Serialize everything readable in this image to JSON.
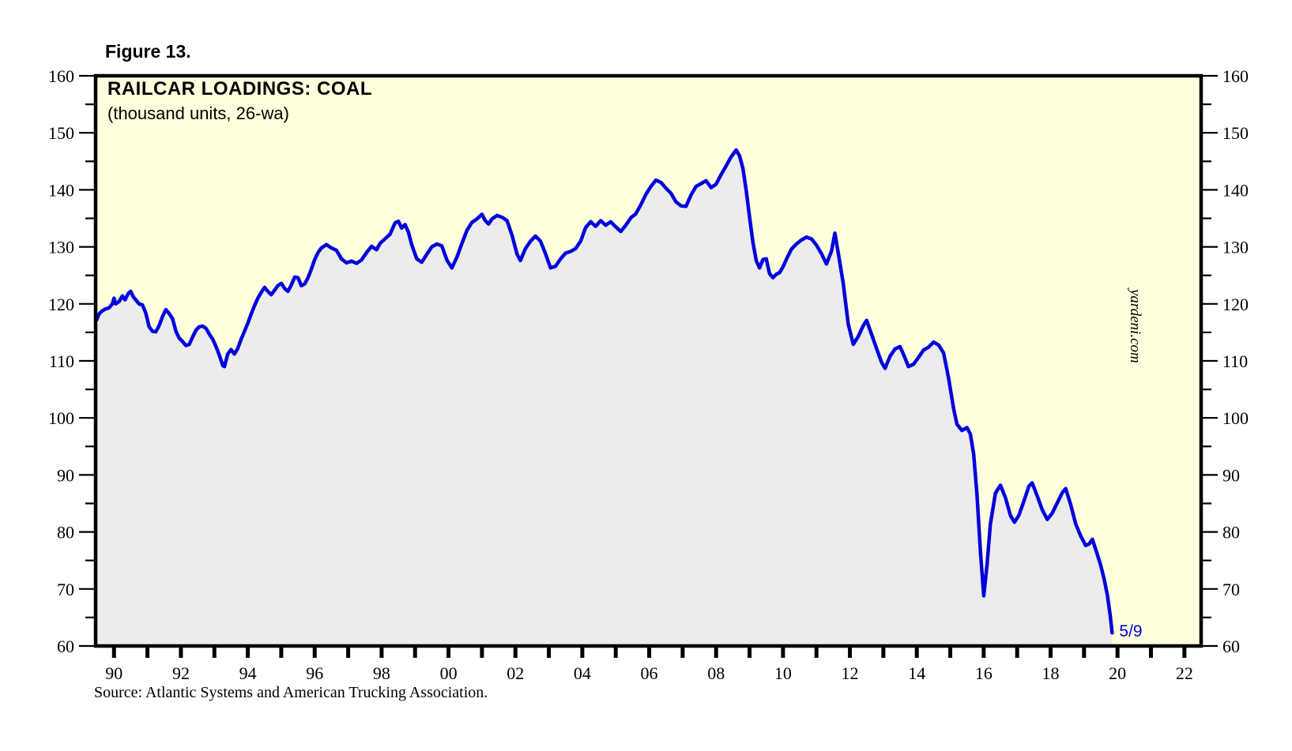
{
  "figure": {
    "label": "Figure 13."
  },
  "chart": {
    "title": "RAILCAR LOADINGS: COAL",
    "subtitle": "(thousand units, 26-wa)",
    "watermark": "yardeni.com",
    "end_label": "5/9",
    "source": "Source: Atlantic Systems and American Trucking Association.",
    "colors": {
      "line": "#0000dd",
      "area_fill": "#ececec",
      "plot_background": "#ffffdd",
      "border": "#000000",
      "annotation": "#0000dd"
    }
  },
  "chart_data": {
    "type": "line",
    "title": "RAILCAR LOADINGS: COAL",
    "subtitle": "(thousand units, 26-wa)",
    "xlabel": "",
    "ylabel": "thousand units",
    "xlim": [
      1989.45,
      2022.5
    ],
    "ylim": [
      60,
      160
    ],
    "grid": false,
    "legend_position": "none",
    "y_tick_major": 10,
    "y_tick_minor": 5,
    "x_axis": {
      "tick_years_labeled": [
        1990,
        1992,
        1994,
        1996,
        1998,
        2000,
        2002,
        2004,
        2006,
        2008,
        2010,
        2012,
        2014,
        2016,
        2018,
        2020,
        2022
      ],
      "labels": [
        "90",
        "92",
        "94",
        "96",
        "98",
        "00",
        "02",
        "04",
        "06",
        "08",
        "10",
        "12",
        "14",
        "16",
        "18",
        "20",
        "22"
      ],
      "minor_tick_every_year": true
    },
    "y_axis": {
      "tick_values_labeled": [
        60,
        70,
        80,
        90,
        100,
        110,
        120,
        130,
        140,
        150,
        160
      ],
      "labels_both_sides": true
    },
    "annotation": {
      "x": 2019.84,
      "y": 62.3,
      "label": "5/9"
    },
    "series": [
      {
        "name": "Railcar loadings: coal (thousand units, 26-week average)",
        "x": [
          1989.48,
          1989.56,
          1989.65,
          1989.75,
          1989.85,
          1989.95,
          1990.0,
          1990.05,
          1990.15,
          1990.25,
          1990.33,
          1990.42,
          1990.5,
          1990.58,
          1990.65,
          1990.75,
          1990.85,
          1990.95,
          1991.05,
          1991.15,
          1991.25,
          1991.35,
          1991.45,
          1991.55,
          1991.65,
          1991.75,
          1991.85,
          1991.95,
          1992.05,
          1992.15,
          1992.25,
          1992.35,
          1992.45,
          1992.55,
          1992.65,
          1992.75,
          1992.85,
          1992.95,
          1993.05,
          1993.15,
          1993.25,
          1993.3,
          1993.4,
          1993.5,
          1993.6,
          1993.7,
          1993.8,
          1993.9,
          1994.0,
          1994.1,
          1994.2,
          1994.3,
          1994.4,
          1994.5,
          1994.6,
          1994.7,
          1994.8,
          1994.9,
          1995.0,
          1995.1,
          1995.2,
          1995.3,
          1995.4,
          1995.5,
          1995.6,
          1995.7,
          1995.8,
          1995.9,
          1996.0,
          1996.1,
          1996.2,
          1996.35,
          1996.5,
          1996.65,
          1996.8,
          1996.95,
          1997.1,
          1997.25,
          1997.4,
          1997.55,
          1997.7,
          1997.85,
          1997.95,
          1998.1,
          1998.25,
          1998.4,
          1998.5,
          1998.6,
          1998.7,
          1998.8,
          1998.9,
          1999.05,
          1999.2,
          1999.35,
          1999.5,
          1999.65,
          1999.8,
          1999.95,
          2000.1,
          2000.25,
          2000.4,
          2000.55,
          2000.7,
          2000.85,
          2001.0,
          2001.1,
          2001.2,
          2001.3,
          2001.45,
          2001.6,
          2001.75,
          2001.9,
          2002.05,
          2002.15,
          2002.3,
          2002.45,
          2002.6,
          2002.75,
          2002.9,
          2003.05,
          2003.2,
          2003.35,
          2003.5,
          2003.65,
          2003.8,
          2003.95,
          2004.1,
          2004.25,
          2004.4,
          2004.55,
          2004.7,
          2004.85,
          2005.0,
          2005.15,
          2005.3,
          2005.45,
          2005.6,
          2005.75,
          2005.9,
          2006.05,
          2006.2,
          2006.35,
          2006.5,
          2006.65,
          2006.8,
          2006.95,
          2007.1,
          2007.25,
          2007.4,
          2007.55,
          2007.7,
          2007.85,
          2008.0,
          2008.15,
          2008.3,
          2008.45,
          2008.6,
          2008.7,
          2008.8,
          2008.9,
          2009.0,
          2009.1,
          2009.2,
          2009.3,
          2009.4,
          2009.5,
          2009.6,
          2009.7,
          2009.8,
          2009.9,
          2010.0,
          2010.1,
          2010.25,
          2010.4,
          2010.55,
          2010.7,
          2010.85,
          2011.0,
          2011.15,
          2011.3,
          2011.45,
          2011.55,
          2011.65,
          2011.8,
          2011.95,
          2012.1,
          2012.25,
          2012.4,
          2012.5,
          2012.65,
          2012.8,
          2012.95,
          2013.05,
          2013.2,
          2013.35,
          2013.5,
          2013.62,
          2013.75,
          2013.9,
          2014.05,
          2014.2,
          2014.35,
          2014.5,
          2014.65,
          2014.8,
          2014.95,
          2015.1,
          2015.2,
          2015.35,
          2015.5,
          2015.6,
          2015.7,
          2015.8,
          2015.9,
          2016.0,
          2016.1,
          2016.2,
          2016.35,
          2016.5,
          2016.65,
          2016.8,
          2016.92,
          2017.05,
          2017.2,
          2017.35,
          2017.45,
          2017.6,
          2017.75,
          2017.9,
          2018.05,
          2018.2,
          2018.35,
          2018.45,
          2018.6,
          2018.75,
          2018.9,
          2019.05,
          2019.15,
          2019.25,
          2019.4,
          2019.5,
          2019.6,
          2019.7,
          2019.78,
          2019.84
        ],
        "y": [
          117.2,
          118.3,
          118.8,
          119.1,
          119.3,
          120.0,
          121.0,
          120.0,
          120.4,
          121.4,
          120.7,
          121.8,
          122.2,
          121.2,
          120.7,
          120.0,
          119.8,
          118.4,
          116.0,
          115.2,
          115.1,
          116.2,
          117.8,
          119.0,
          118.3,
          117.4,
          115.2,
          114.0,
          113.4,
          112.7,
          112.9,
          114.2,
          115.4,
          116.0,
          116.1,
          115.7,
          114.7,
          113.8,
          112.5,
          111.0,
          109.2,
          109.0,
          111.2,
          112.0,
          111.2,
          112.2,
          113.8,
          115.2,
          116.6,
          118.2,
          119.7,
          121.0,
          122.0,
          122.9,
          122.2,
          121.6,
          122.4,
          123.2,
          123.6,
          122.7,
          122.2,
          123.3,
          124.7,
          124.6,
          123.2,
          123.5,
          124.6,
          126.1,
          127.8,
          129.0,
          129.8,
          130.4,
          129.8,
          129.4,
          127.9,
          127.2,
          127.5,
          127.1,
          127.7,
          129.0,
          130.1,
          129.5,
          130.6,
          131.4,
          132.2,
          134.2,
          134.5,
          133.3,
          133.9,
          132.6,
          130.4,
          127.9,
          127.3,
          128.7,
          130.0,
          130.5,
          130.2,
          127.7,
          126.3,
          128.2,
          130.6,
          132.9,
          134.3,
          134.9,
          135.7,
          134.6,
          134.0,
          134.9,
          135.5,
          135.2,
          134.6,
          132.0,
          128.7,
          127.6,
          129.7,
          131.0,
          131.9,
          131.0,
          128.8,
          126.3,
          126.6,
          127.9,
          128.9,
          129.2,
          129.7,
          131.0,
          133.4,
          134.4,
          133.6,
          134.6,
          133.8,
          134.4,
          133.5,
          132.7,
          133.8,
          135.1,
          135.8,
          137.4,
          139.2,
          140.6,
          141.7,
          141.3,
          140.3,
          139.4,
          137.9,
          137.2,
          137.1,
          139.1,
          140.6,
          141.1,
          141.6,
          140.4,
          141.0,
          142.7,
          144.2,
          145.8,
          147.0,
          146.0,
          143.8,
          139.9,
          135.3,
          130.8,
          127.6,
          126.3,
          127.8,
          127.9,
          125.3,
          124.6,
          125.2,
          125.5,
          126.5,
          127.8,
          129.6,
          130.5,
          131.2,
          131.7,
          131.4,
          130.3,
          128.8,
          127.0,
          129.3,
          132.4,
          129.0,
          123.6,
          116.5,
          112.9,
          114.3,
          116.2,
          117.1,
          114.6,
          112.1,
          109.7,
          108.7,
          110.8,
          112.1,
          112.5,
          110.9,
          109.0,
          109.4,
          110.6,
          111.9,
          112.4,
          113.3,
          112.8,
          111.4,
          107.0,
          101.6,
          98.9,
          97.8,
          98.3,
          97.2,
          93.6,
          86.5,
          76.8,
          68.8,
          74.3,
          81.4,
          86.8,
          88.2,
          86.0,
          82.9,
          81.7,
          82.9,
          85.4,
          88.0,
          88.6,
          86.3,
          83.9,
          82.2,
          83.3,
          85.1,
          86.9,
          87.6,
          84.8,
          81.4,
          79.3,
          77.6,
          77.9,
          78.7,
          76.0,
          74.1,
          71.8,
          68.8,
          65.4,
          62.3
        ]
      }
    ]
  }
}
